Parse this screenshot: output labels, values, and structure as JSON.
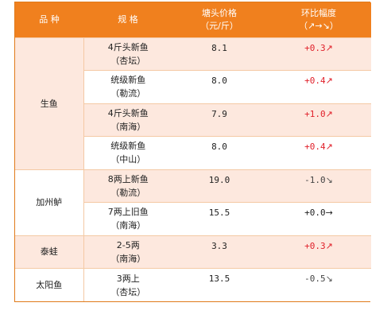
{
  "headers": {
    "kind": "品  种",
    "spec": "规  格",
    "price_line1": "塘头价格",
    "price_line2": "（元/斤）",
    "change_line1": "环比幅度",
    "change_line2": "（↗→↘）"
  },
  "groups": [
    {
      "kind": "生鱼",
      "rows": [
        {
          "spec": "4斤头新鱼",
          "area": "（杏坛）",
          "price": "8.1",
          "change": "+0.3",
          "arrow": "↗",
          "trend": "up"
        },
        {
          "spec": "统级新鱼",
          "area": "（勒流）",
          "price": "8.0",
          "change": "+0.4",
          "arrow": "↗",
          "trend": "up"
        },
        {
          "spec": "4斤头新鱼",
          "area": "（南海）",
          "price": "7.9",
          "change": "+1.0",
          "arrow": "↗",
          "trend": "up"
        },
        {
          "spec": "统级新鱼",
          "area": "（中山）",
          "price": "8.0",
          "change": "+0.4",
          "arrow": "↗",
          "trend": "up"
        }
      ]
    },
    {
      "kind": "加州鲈",
      "rows": [
        {
          "spec": "8两上新鱼",
          "area": "（勒流）",
          "price": "19.0",
          "change": "-1.0",
          "arrow": "↘",
          "trend": "down"
        },
        {
          "spec": "7两上旧鱼",
          "area": "（南海）",
          "price": "15.5",
          "change": "+0.0",
          "arrow": "→",
          "trend": "flat"
        }
      ]
    },
    {
      "kind": "泰蛙",
      "rows": [
        {
          "spec": "2-5两",
          "area": "（南海）",
          "price": "3.3",
          "change": "+0.3",
          "arrow": "↗",
          "trend": "up"
        }
      ]
    },
    {
      "kind": "太阳鱼",
      "rows": [
        {
          "spec": "3两上",
          "area": "（杏坛）",
          "price": "13.5",
          "change": "-0.5",
          "arrow": "↘",
          "trend": "down"
        }
      ]
    }
  ],
  "colors": {
    "header_bg": "#f0801e",
    "row_pink": "#fde8de",
    "up": "#e0202a"
  }
}
